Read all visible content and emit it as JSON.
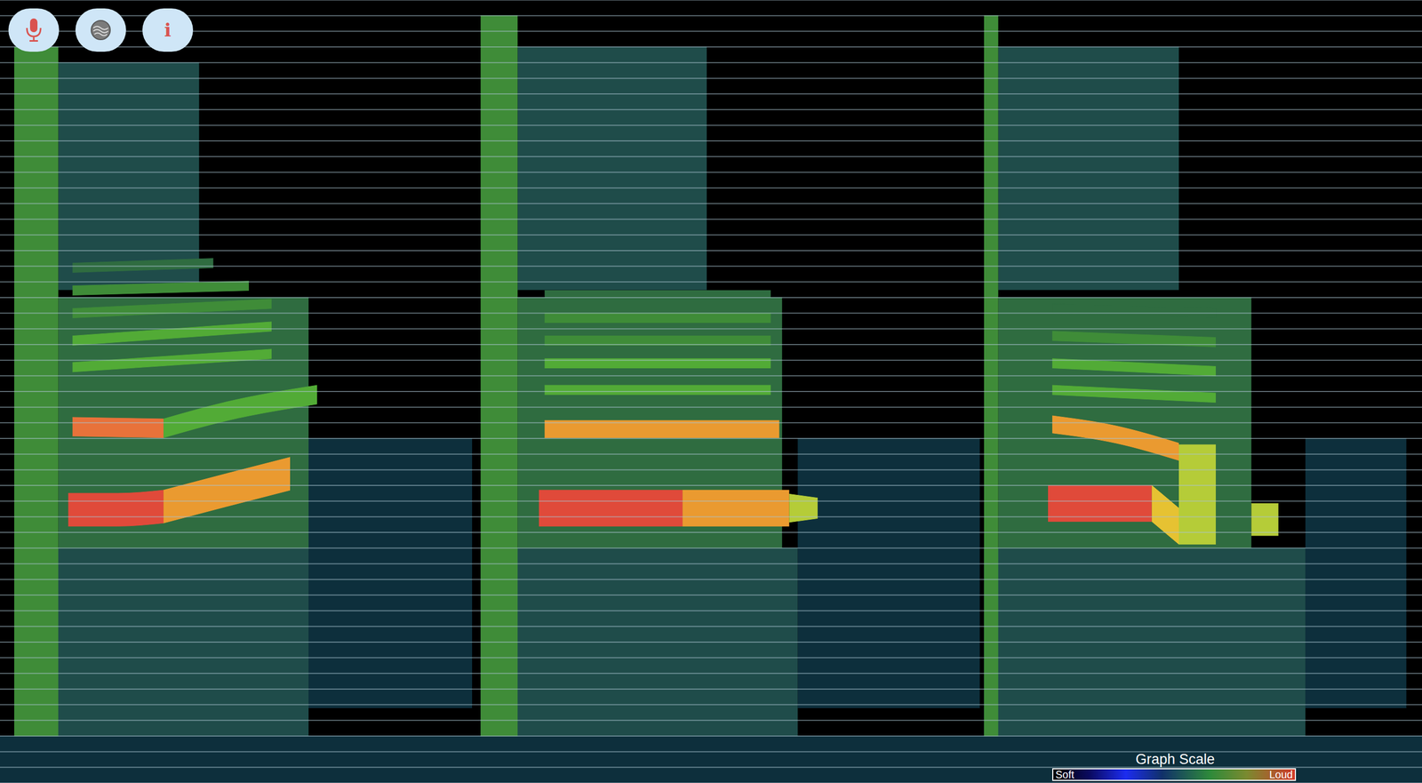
{
  "chart_data": {
    "type": "spectrogram",
    "xlim": [
      0,
      100
    ],
    "ylim": [
      0,
      100
    ],
    "yticks": [
      0,
      2,
      4,
      6,
      8,
      10,
      12,
      14,
      16,
      18,
      20,
      22,
      24,
      26,
      28,
      30,
      32,
      34,
      36,
      38,
      40,
      42,
      44,
      46,
      48,
      50,
      52,
      54,
      56,
      58,
      60,
      62,
      64,
      66,
      68,
      70,
      72,
      74,
      76,
      78,
      80,
      82,
      84,
      86,
      88,
      90,
      92,
      94,
      96,
      98,
      100
    ],
    "grid": true,
    "tick_labels": false,
    "color_scale": {
      "title": "Graph Scale",
      "range": [
        0,
        10
      ],
      "low_label": "Soft",
      "high_label": "Loud"
    },
    "bands": [
      {
        "x": [
          0,
          100
        ],
        "low": [
          0,
          0
        ],
        "high": [
          6,
          6
        ],
        "level": 1
      },
      {
        "x": [
          21.7,
          33.2
        ],
        "low": [
          9.6,
          9.6
        ],
        "high": [
          44,
          44
        ],
        "level": 1
      },
      {
        "x": [
          56.1,
          68.9
        ],
        "low": [
          9.6,
          9.6
        ],
        "high": [
          44,
          44
        ],
        "level": 1
      },
      {
        "x": [
          91.8,
          98.9
        ],
        "low": [
          9.6,
          9.6
        ],
        "high": [
          44,
          44
        ],
        "level": 1
      },
      {
        "x": [
          1.0,
          21.7
        ],
        "low": [
          6,
          6
        ],
        "high": [
          30,
          30
        ],
        "level": 2
      },
      {
        "x": [
          4.1,
          21.7
        ],
        "low": [
          30,
          30
        ],
        "high": [
          62,
          62
        ],
        "level": 3
      },
      {
        "x": [
          4.1,
          14.0
        ],
        "low": [
          63,
          63
        ],
        "high": [
          92,
          92
        ],
        "level": 2
      },
      {
        "x": [
          1.0,
          4.1
        ],
        "low": [
          6,
          6
        ],
        "high": [
          94,
          94
        ],
        "level": 4
      },
      {
        "x": [
          5.1,
          19.1
        ],
        "low": [
          52.5,
          54.2
        ],
        "high": [
          53.7,
          55.4
        ],
        "level": 5
      },
      {
        "x": [
          5.1,
          19.1
        ],
        "low": [
          55.9,
          57.7
        ],
        "high": [
          57.1,
          58.9
        ],
        "level": 5
      },
      {
        "x": [
          5.1,
          19.1
        ],
        "low": [
          59.4,
          60.6
        ],
        "high": [
          60.6,
          61.8
        ],
        "level": 4
      },
      {
        "x": [
          5.1,
          17.5
        ],
        "low": [
          62.3,
          62.9
        ],
        "high": [
          63.5,
          64.1
        ],
        "level": 4
      },
      {
        "x": [
          5.1,
          15.0
        ],
        "low": [
          65.2,
          65.8
        ],
        "high": [
          66.4,
          67.0
        ],
        "level": 3
      },
      {
        "x": [
          5.1,
          11.5
        ],
        "low": [
          44.3,
          44.1
        ],
        "high": [
          46.7,
          46.5
        ],
        "level": 9
      },
      {
        "x": [
          11.5,
          16.0,
          22.3
        ],
        "low": [
          44.1,
          46.3,
          48.4
        ],
        "high": [
          46.5,
          48.7,
          50.8
        ],
        "level": 5
      },
      {
        "x": [
          4.8,
          8.3,
          11.5
        ],
        "low": [
          32.8,
          32.8,
          33.2
        ],
        "high": [
          37.0,
          37.0,
          37.4
        ],
        "level": 10
      },
      {
        "x": [
          11.5,
          15.9,
          20.4
        ],
        "low": [
          33.2,
          35.3,
          37.4
        ],
        "high": [
          37.4,
          39.5,
          41.6
        ],
        "level": 8
      },
      {
        "x": [
          33.8,
          56.1
        ],
        "low": [
          6,
          6
        ],
        "high": [
          30,
          30
        ],
        "level": 2
      },
      {
        "x": [
          36.4,
          55.0
        ],
        "low": [
          30,
          30
        ],
        "high": [
          62,
          62
        ],
        "level": 3
      },
      {
        "x": [
          36.4,
          49.7
        ],
        "low": [
          63,
          63
        ],
        "high": [
          94,
          94
        ],
        "level": 2
      },
      {
        "x": [
          33.8,
          36.4
        ],
        "low": [
          6,
          6
        ],
        "high": [
          98,
          98
        ],
        "level": 4
      },
      {
        "x": [
          38.3,
          54.2
        ],
        "low": [
          49.6,
          49.6
        ],
        "high": [
          50.8,
          50.8
        ],
        "level": 5
      },
      {
        "x": [
          38.3,
          54.2
        ],
        "low": [
          53.0,
          53.0
        ],
        "high": [
          54.2,
          54.2
        ],
        "level": 5
      },
      {
        "x": [
          38.3,
          54.2
        ],
        "low": [
          55.9,
          55.9
        ],
        "high": [
          57.1,
          57.1
        ],
        "level": 4
      },
      {
        "x": [
          38.3,
          54.2
        ],
        "low": [
          58.8,
          58.8
        ],
        "high": [
          60.0,
          60.0
        ],
        "level": 4
      },
      {
        "x": [
          38.3,
          54.2
        ],
        "low": [
          61.7,
          61.7
        ],
        "high": [
          62.9,
          62.9
        ],
        "level": 3
      },
      {
        "x": [
          38.3,
          54.8
        ],
        "low": [
          44.1,
          44.1
        ],
        "high": [
          46.3,
          46.3
        ],
        "level": 8
      },
      {
        "x": [
          37.9,
          48.0
        ],
        "low": [
          32.8,
          32.8
        ],
        "high": [
          37.4,
          37.4
        ],
        "level": 10
      },
      {
        "x": [
          48.0,
          55.5
        ],
        "low": [
          32.8,
          32.8
        ],
        "high": [
          37.4,
          37.4
        ],
        "level": 8
      },
      {
        "x": [
          55.5,
          57.5
        ],
        "low": [
          33.3,
          33.8
        ],
        "high": [
          36.9,
          36.4
        ],
        "level": 6
      },
      {
        "x": [
          69.2,
          91.8
        ],
        "low": [
          6,
          6
        ],
        "high": [
          30,
          30
        ],
        "level": 2
      },
      {
        "x": [
          70.2,
          88.0
        ],
        "low": [
          30,
          30
        ],
        "high": [
          62,
          62
        ],
        "level": 3
      },
      {
        "x": [
          70.2,
          82.9
        ],
        "low": [
          63,
          63
        ],
        "high": [
          94,
          94
        ],
        "level": 2
      },
      {
        "x": [
          69.2,
          70.2
        ],
        "low": [
          6,
          6
        ],
        "high": [
          98,
          98
        ],
        "level": 4
      },
      {
        "x": [
          74.0,
          85.5
        ],
        "low": [
          49.6,
          48.6
        ],
        "high": [
          50.8,
          49.8
        ],
        "level": 5
      },
      {
        "x": [
          74.0,
          85.5
        ],
        "low": [
          53.0,
          52.0
        ],
        "high": [
          54.2,
          53.2
        ],
        "level": 5
      },
      {
        "x": [
          74.0,
          85.5
        ],
        "low": [
          56.5,
          55.7
        ],
        "high": [
          57.7,
          56.9
        ],
        "level": 4
      },
      {
        "x": [
          74.0,
          85.5
        ],
        "low": [
          60.0,
          59.4
        ],
        "high": [
          61.2,
          60.6
        ],
        "level": 3
      },
      {
        "x": [
          82.9,
          85.5
        ],
        "low": [
          30.5,
          30.5
        ],
        "high": [
          43.2,
          43.2
        ],
        "level": 6
      },
      {
        "x": [
          88.0,
          89.9
        ],
        "low": [
          31.6,
          31.6
        ],
        "high": [
          35.7,
          35.7
        ],
        "level": 6
      },
      {
        "x": [
          74.0,
          78.5,
          82.9
        ],
        "low": [
          44.7,
          43.4,
          41.2
        ],
        "high": [
          46.9,
          45.6,
          43.4
        ],
        "level": 8
      },
      {
        "x": [
          73.7,
          81.0
        ],
        "low": [
          33.4,
          33.4
        ],
        "high": [
          38.0,
          38.0
        ],
        "level": 10
      },
      {
        "x": [
          81.0,
          82.9
        ],
        "low": [
          33.4,
          30.5
        ],
        "high": [
          38.0,
          35.1
        ],
        "level": 7
      }
    ]
  },
  "controls": {
    "info_label": "i"
  }
}
